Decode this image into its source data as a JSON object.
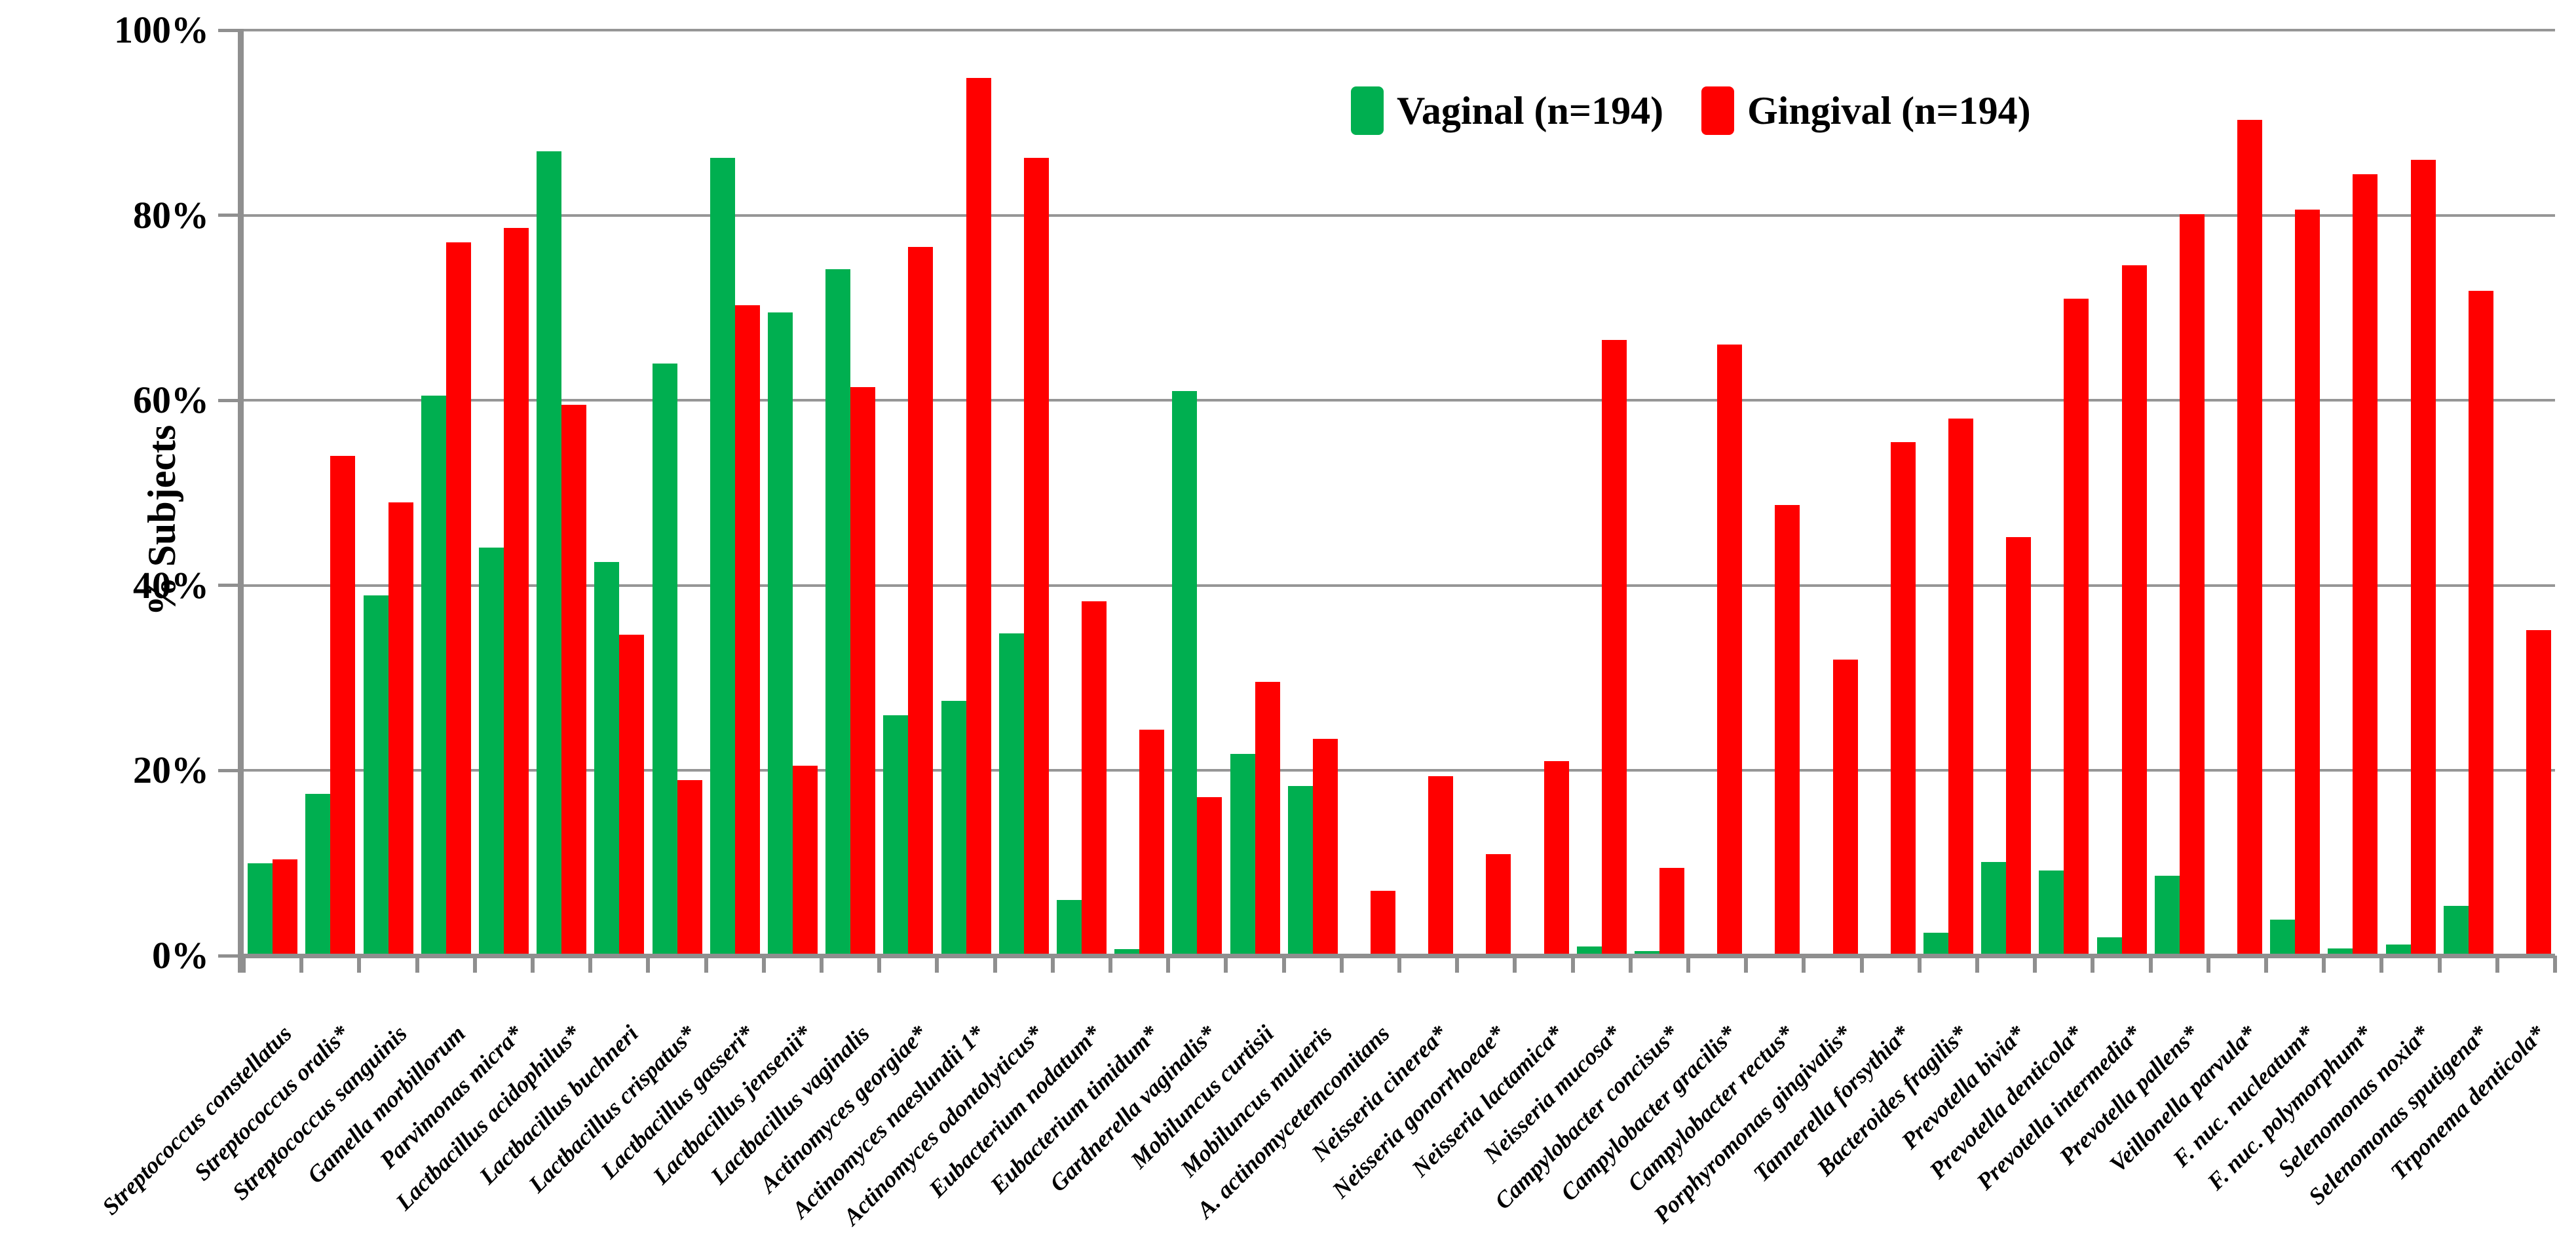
{
  "chart_data": {
    "type": "bar",
    "title": "",
    "xlabel": "",
    "ylabel": "% Subjects",
    "ylim": [
      0,
      100
    ],
    "yticks": [
      0,
      20,
      40,
      60,
      80,
      100
    ],
    "ytick_labels": [
      "0%",
      "20%",
      "40%",
      "60%",
      "80%",
      "100%"
    ],
    "grid": true,
    "legend_position": "top-center-inside",
    "axis_color": "#8f8f8f",
    "gridline_color": "#969696",
    "categories": [
      "Streptococcus constellatus",
      "Streptococcus oralis*",
      "Streptococcus sanguinis",
      "Gamella morbillorum",
      "Parvimonas micra*",
      "Lactbacillus acidophilus*",
      "Lactbacillus buchneri",
      "Lactbacillus crispatus*",
      "Lactbacillus gasseri*",
      "Lactbacillus jensenii*",
      "Lactbacillus vaginalis",
      "Actinomyces georgiae*",
      "Actinomyces naeslundii 1*",
      "Actinomyces odontolyticus*",
      "Eubacterium nodatum*",
      "Eubacterium timidum*",
      "Gardnerella vaginalis*",
      "Mobiluncus curtisii",
      "Mobiluncus mulieris",
      "A. actinomycetemcomitans",
      "Neisseria cinerea*",
      "Neisseria gonorrhoeae*",
      "Neisseria lactamica*",
      "Neisseria mucosa*",
      "Campylobacter concisus*",
      "Campylobacter gracilis*",
      "Campylobacter rectus*",
      "Porphyromonas gingivalis*",
      "Tannerella forsythia*",
      "Bacteroides fragilis*",
      "Prevotella bivia*",
      "Prevotella denticola*",
      "Prevotella intermedia*",
      "Prevotella pallens*",
      "Veillonella parvula*",
      "F. nuc. nucleatum*",
      "F. nuc. polymorphum*",
      "Selenomonas noxia*",
      "Selenomonas sputigena*",
      "Trponema denticola*"
    ],
    "series": [
      {
        "name": "Vaginal (n=194)",
        "color": "#00AF50",
        "values": [
          10.0,
          17.5,
          38.9,
          60.5,
          44.1,
          86.9,
          42.5,
          64.0,
          86.2,
          69.5,
          74.2,
          26.0,
          27.5,
          34.8,
          6.0,
          0.7,
          61.0,
          21.8,
          18.3,
          0,
          0,
          0,
          0,
          1.0,
          0.5,
          0,
          0,
          0,
          0,
          2.5,
          10.1,
          9.2,
          2.0,
          8.6,
          0,
          3.9,
          0.8,
          1.2,
          5.4,
          0
        ]
      },
      {
        "name": "Gingival (n=194)",
        "color": "#FF0000",
        "values": [
          10.4,
          54.0,
          49.0,
          77.1,
          78.6,
          59.5,
          34.7,
          19.0,
          70.3,
          20.5,
          61.4,
          76.6,
          94.8,
          86.2,
          38.3,
          24.4,
          17.1,
          29.6,
          23.4,
          7.0,
          19.4,
          11.0,
          21.0,
          66.5,
          9.5,
          66.0,
          48.7,
          32.0,
          55.5,
          58.0,
          45.2,
          71.0,
          74.6,
          80.1,
          90.3,
          80.6,
          84.4,
          86.0,
          71.8,
          35.2
        ]
      }
    ]
  }
}
